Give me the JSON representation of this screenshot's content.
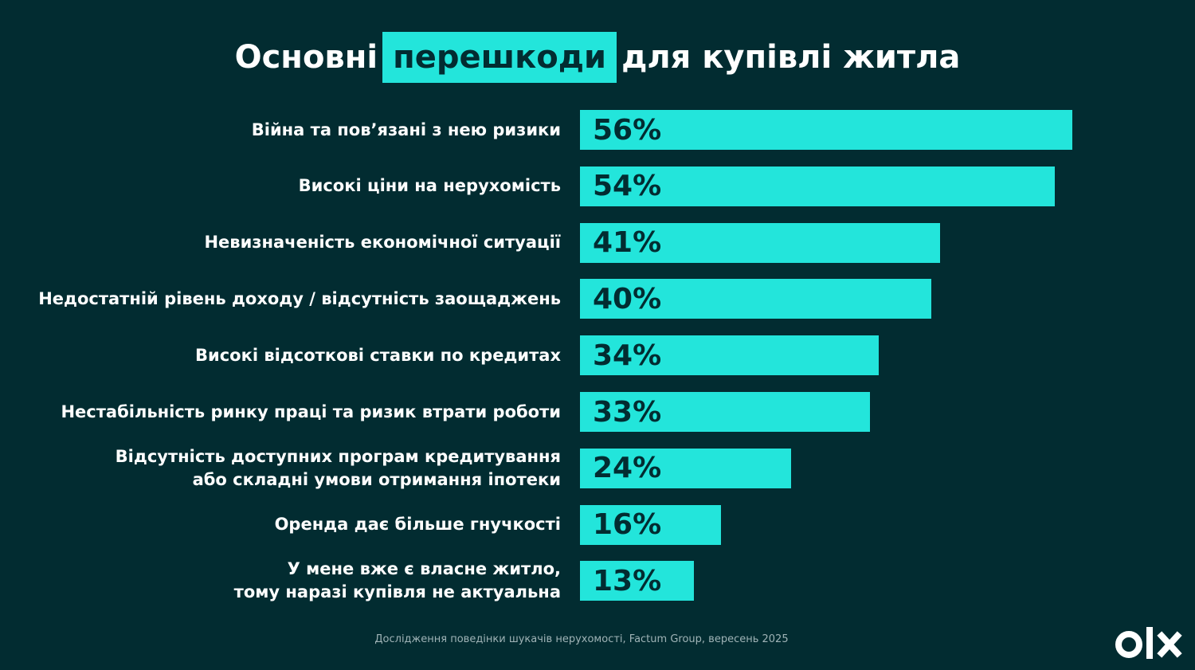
{
  "title": {
    "before": "Основні",
    "highlight": "перешкоди",
    "after": "для купівлі житла"
  },
  "chart_data": {
    "type": "bar",
    "orientation": "horizontal",
    "categories": [
      "Війна та пов’язані з нею ризики",
      "Високі ціни на нерухомість",
      "Невизначеність економічної ситуації",
      "Недостатній рівень доходу / відсутність заощаджень",
      "Високі відсоткові ставки по кредитах",
      "Нестабільність ринку праці та ризик втрати роботи",
      "Відсутність доступних програм кредитування\nабо складні умови отримання іпотеки",
      "Оренда дає більше гнучкості",
      "У мене вже є власне житло,\nтому наразі купівля не актуальна"
    ],
    "values": [
      56,
      54,
      41,
      40,
      34,
      33,
      24,
      16,
      13
    ],
    "value_labels": [
      "56%",
      "54%",
      "41%",
      "40%",
      "34%",
      "33%",
      "24%",
      "16%",
      "13%"
    ],
    "unit": "%",
    "grid": false,
    "legend": "none"
  },
  "colors": {
    "background": "#022c31",
    "bar": "#23e5db",
    "text": "#ffffff",
    "value_text": "#022c31"
  },
  "source": "Дослідження поведінки шукачів нерухомості, Factum Group, вересень 2025",
  "logo": {
    "text": "OLX",
    "icon": "olx-logo"
  }
}
